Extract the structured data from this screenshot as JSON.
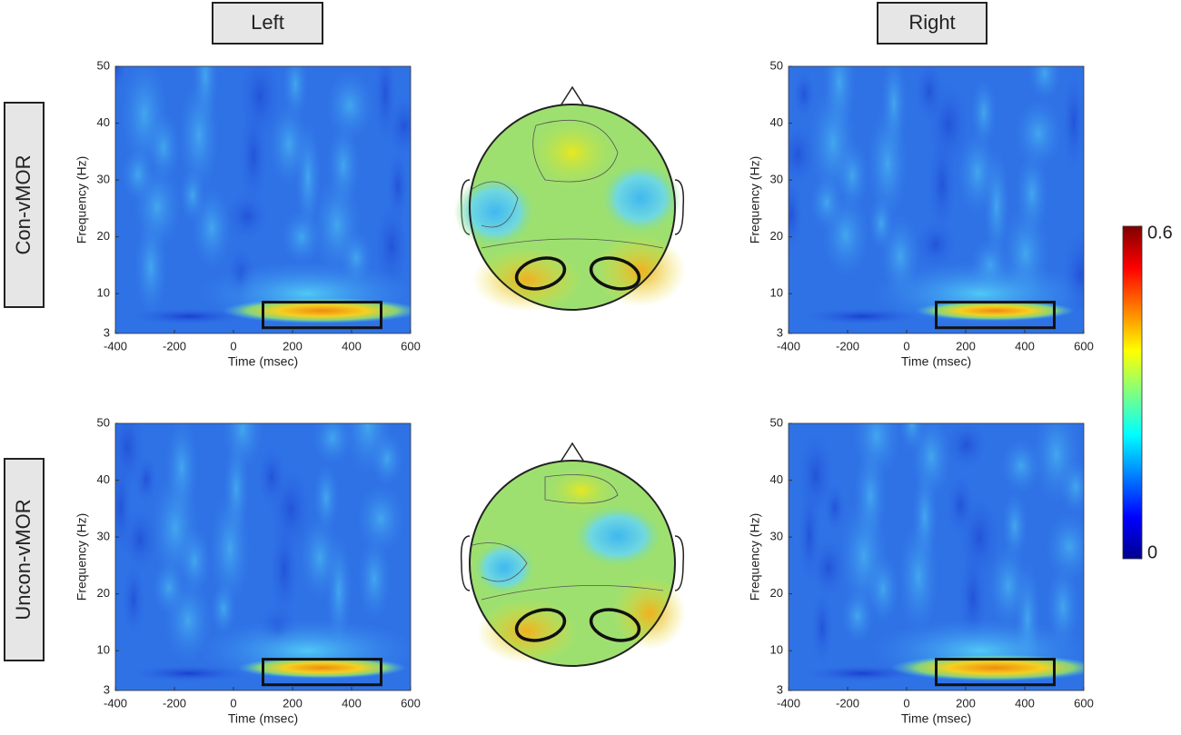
{
  "column_labels": [
    "Left",
    "Right"
  ],
  "row_labels": [
    "Con-vMOR",
    "Uncon-vMOR"
  ],
  "chart_data": [
    {
      "type": "heatmap",
      "xlabel": "Time (msec)",
      "ylabel": "Frequency (Hz)",
      "xlim": [
        -400,
        600
      ],
      "ylim": [
        3,
        50
      ],
      "xticks": [
        -400,
        -200,
        0,
        200,
        400,
        600
      ],
      "yticks": [
        3,
        10,
        20,
        30,
        40,
        50
      ],
      "roi_x": [
        100,
        500
      ],
      "roi_y": [
        4,
        8.5
      ]
    },
    {
      "type": "heatmap",
      "xlabel": "Time (msec)",
      "ylabel": "Frequency (Hz)",
      "xlim": [
        -400,
        600
      ],
      "ylim": [
        3,
        50
      ],
      "xticks": [
        -400,
        -200,
        0,
        200,
        400,
        600
      ],
      "yticks": [
        3,
        10,
        20,
        30,
        40,
        50
      ],
      "roi_x": [
        100,
        500
      ],
      "roi_y": [
        4,
        8.5
      ]
    },
    {
      "type": "heatmap",
      "xlabel": "Time (msec)",
      "ylabel": "Frequency (Hz)",
      "xlim": [
        -400,
        600
      ],
      "ylim": [
        3,
        50
      ],
      "xticks": [
        -400,
        -200,
        0,
        200,
        400,
        600
      ],
      "yticks": [
        3,
        10,
        20,
        30,
        40,
        50
      ],
      "roi_x": [
        100,
        500
      ],
      "roi_y": [
        4,
        8.5
      ]
    },
    {
      "type": "heatmap",
      "xlabel": "Time (msec)",
      "ylabel": "Frequency (Hz)",
      "xlim": [
        -400,
        600
      ],
      "ylim": [
        3,
        50
      ],
      "xticks": [
        -400,
        -200,
        0,
        200,
        400,
        600
      ],
      "yticks": [
        3,
        10,
        20,
        30,
        40,
        50
      ],
      "roi_x": [
        100,
        500
      ],
      "roi_y": [
        4,
        8.5
      ]
    }
  ],
  "colorbar": {
    "lim": [
      0,
      0.6
    ],
    "ticks": [
      0,
      0.6
    ]
  }
}
